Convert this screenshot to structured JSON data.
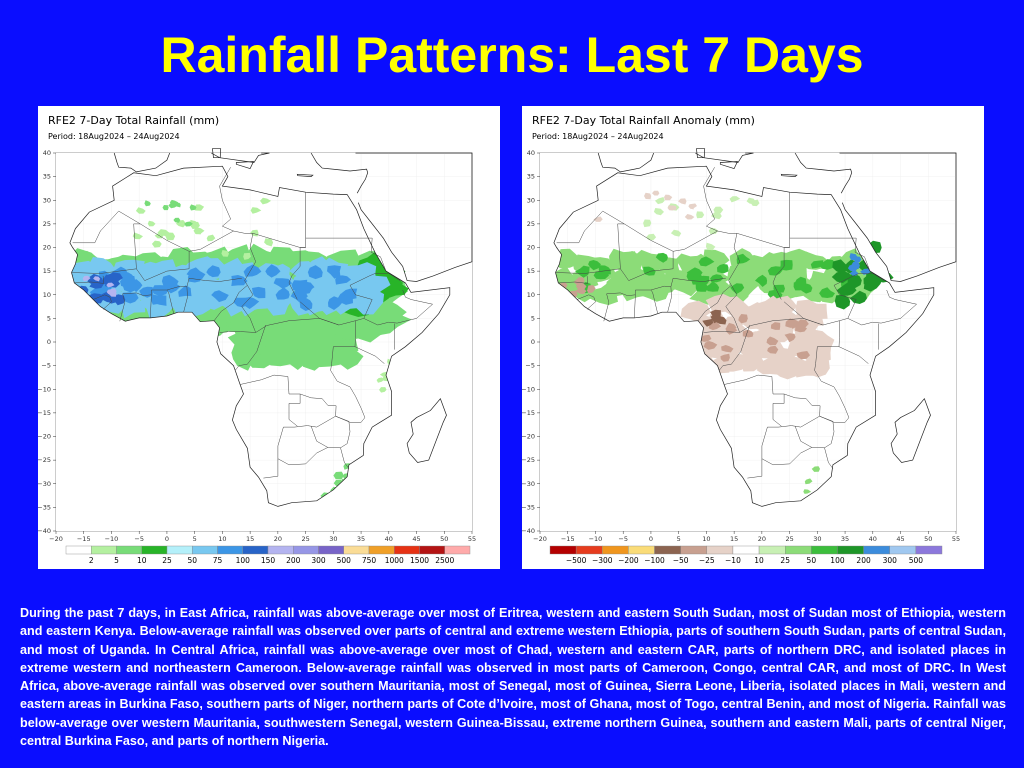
{
  "slide": {
    "title": "Rainfall Patterns: Last 7 Days",
    "description": "During the past 7 days, in East Africa, rainfall was above-average over most of Eritrea, western and eastern South Sudan, most of Sudan most of Ethiopia, western  and eastern Kenya. Below-average rainfall was observed over parts of central and extreme western Ethiopia, parts of southern South Sudan, parts of central Sudan, and most of Uganda. In Central Africa, rainfall was above-average over most of Chad, western and eastern CAR, parts of northern DRC, and isolated places in extreme western and northeastern Cameroon. Below-average rainfall was observed in most parts of Cameroon, Congo, central CAR, and most of DRC. In West Africa, above-average rainfall was observed over southern Mauritania, most of Senegal, most of Guinea, Sierra Leone, Liberia, isolated places in Mali, western and  eastern areas in Burkina Faso, southern parts of Niger, northern parts of Cote d’Ivoire, most of Ghana, most of Togo, central Benin, and most of Nigeria. Rainfall was below-average over western Mauritania, southwestern Senegal, western Guinea-Bissau, extreme northern Guinea, southern and eastern Mali, parts of central Niger, central Burkina Faso, and parts of northern Nigeria."
  },
  "maps": {
    "total": {
      "title": "RFE2 7-Day Total Rainfall (mm)",
      "period": "Period: 18Aug2024 – 24Aug2024",
      "legend_labels": [
        "2",
        "5",
        "10",
        "25",
        "50",
        "75",
        "100",
        "150",
        "200",
        "300",
        "500",
        "750",
        "1000",
        "1500",
        "2500"
      ],
      "legend_colors": [
        "#ffffff",
        "#b4f0a0",
        "#78dc78",
        "#28b428",
        "#b4f0fa",
        "#78c8f0",
        "#3c96e6",
        "#2864c8",
        "#b4b4f0",
        "#9696e6",
        "#7864c8",
        "#fadc96",
        "#f0a028",
        "#e63214",
        "#b41414",
        "#ffaaaa"
      ]
    },
    "anomaly": {
      "title": "RFE2 7-Day Total Rainfall Anomaly (mm)",
      "period": "Period: 18Aug2024 – 24Aug2024",
      "legend_labels": [
        "−500",
        "−300",
        "−200",
        "−100",
        "−50",
        "−25",
        "−10",
        "10",
        "25",
        "50",
        "100",
        "200",
        "300",
        "500"
      ],
      "legend_colors": [
        "#b40000",
        "#e63c1e",
        "#f0961e",
        "#fadc78",
        "#8c6450",
        "#c8a090",
        "#e6d2c8",
        "#ffffff",
        "#c8f0b4",
        "#8cdc78",
        "#3cbe3c",
        "#1e9628",
        "#3c8cdc",
        "#a0c8f0",
        "#8c78dc"
      ]
    },
    "x_ticks": [
      "−20",
      "−15",
      "−10",
      "−5",
      "0",
      "5",
      "10",
      "15",
      "20",
      "25",
      "30",
      "35",
      "40",
      "45",
      "50",
      "55"
    ],
    "y_ticks": [
      "40",
      "35",
      "30",
      "25",
      "20",
      "15",
      "10",
      "5",
      "0",
      "−5",
      "−10",
      "−15",
      "−20",
      "−25",
      "−30",
      "−35",
      "−40"
    ]
  }
}
